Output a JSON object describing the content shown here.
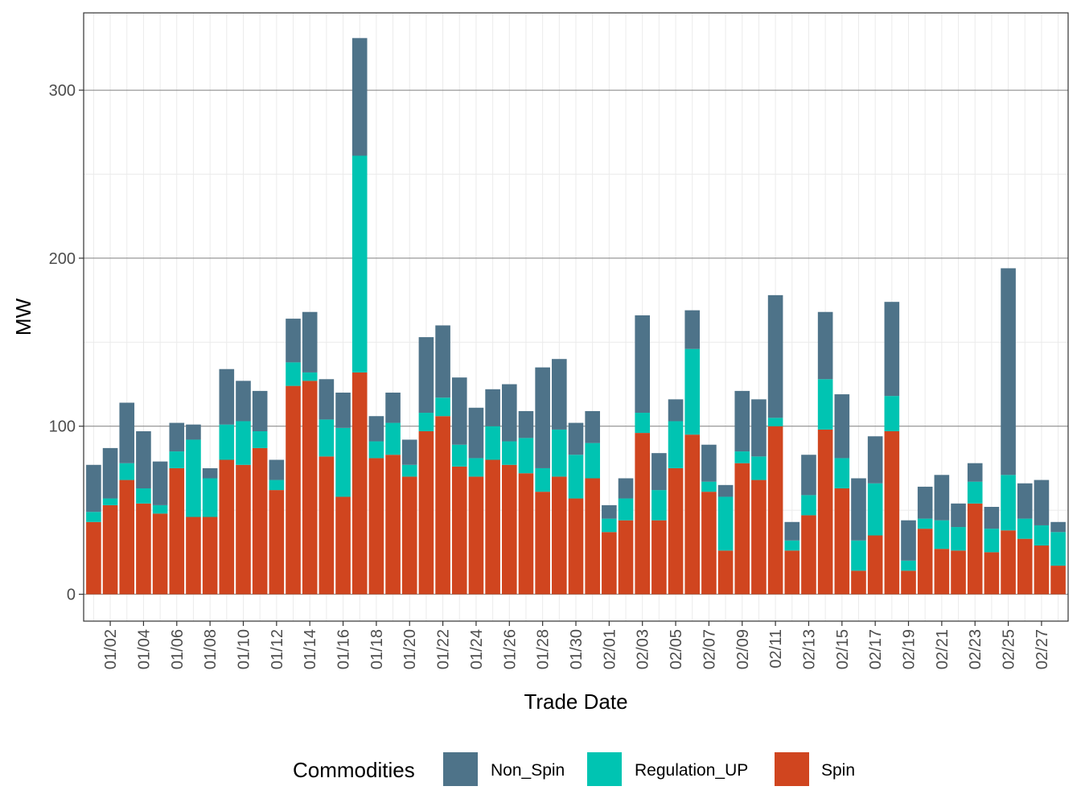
{
  "chart_data": {
    "type": "bar",
    "stacked": true,
    "xlabel": "Trade Date",
    "ylabel": "MW",
    "ylim": [
      -16,
      346
    ],
    "yticks": [
      0,
      100,
      200,
      300
    ],
    "grid": true,
    "legend_position": "bottom",
    "legend_title": "Commodities",
    "categories": [
      "01/01",
      "01/02",
      "01/03",
      "01/04",
      "01/05",
      "01/06",
      "01/07",
      "01/08",
      "01/09",
      "01/10",
      "01/11",
      "01/12",
      "01/13",
      "01/14",
      "01/15",
      "01/16",
      "01/17",
      "01/18",
      "01/19",
      "01/20",
      "01/21",
      "01/22",
      "01/23",
      "01/24",
      "01/25",
      "01/26",
      "01/27",
      "01/28",
      "01/29",
      "01/30",
      "01/31",
      "02/01",
      "02/02",
      "02/03",
      "02/04",
      "02/05",
      "02/06",
      "02/07",
      "02/08",
      "02/09",
      "02/10",
      "02/11",
      "02/12",
      "02/13",
      "02/14",
      "02/15",
      "02/16",
      "02/17",
      "02/18",
      "02/19",
      "02/20",
      "02/21",
      "02/22",
      "02/23",
      "02/24",
      "02/25",
      "02/26",
      "02/27",
      "02/28"
    ],
    "xtick_labels": [
      "01/02",
      "01/04",
      "01/06",
      "01/08",
      "01/10",
      "01/12",
      "01/14",
      "01/16",
      "01/18",
      "01/20",
      "01/22",
      "01/24",
      "01/26",
      "01/28",
      "01/30",
      "02/01",
      "02/03",
      "02/05",
      "02/07",
      "02/09",
      "02/11",
      "02/13",
      "02/15",
      "02/17",
      "02/19",
      "02/21",
      "02/23",
      "02/25",
      "02/27"
    ],
    "stack_order": [
      "Spin",
      "Regulation_UP",
      "Non_Spin"
    ],
    "series": [
      {
        "name": "Non_Spin",
        "color": "#4e7389",
        "values": [
          28,
          30,
          36,
          34,
          26,
          17,
          9,
          6,
          33,
          24,
          24,
          12,
          26,
          36,
          24,
          21,
          70,
          15,
          18,
          15,
          45,
          43,
          40,
          30,
          22,
          34,
          16,
          60,
          42,
          19,
          19,
          8,
          12,
          58,
          22,
          13,
          23,
          22,
          7,
          36,
          34,
          73,
          11,
          24,
          40,
          38,
          37,
          28,
          56,
          24,
          19,
          27,
          14,
          11,
          13,
          123,
          21,
          27,
          6
        ]
      },
      {
        "name": "Regulation_UP",
        "color": "#00c4b2",
        "values": [
          6,
          4,
          10,
          9,
          5,
          10,
          46,
          23,
          21,
          26,
          10,
          6,
          14,
          5,
          22,
          41,
          129,
          10,
          19,
          7,
          11,
          11,
          13,
          11,
          20,
          14,
          21,
          14,
          28,
          26,
          21,
          8,
          13,
          12,
          18,
          28,
          51,
          6,
          32,
          7,
          14,
          5,
          6,
          12,
          30,
          18,
          18,
          31,
          21,
          6,
          6,
          17,
          14,
          13,
          14,
          33,
          12,
          12,
          20
        ]
      },
      {
        "name": "Spin",
        "color": "#d0451f",
        "values": [
          43,
          53,
          68,
          54,
          48,
          75,
          46,
          46,
          80,
          77,
          87,
          62,
          124,
          127,
          82,
          58,
          132,
          81,
          83,
          70,
          97,
          106,
          76,
          70,
          80,
          77,
          72,
          61,
          70,
          57,
          69,
          37,
          44,
          96,
          44,
          75,
          95,
          61,
          26,
          78,
          68,
          100,
          26,
          47,
          98,
          63,
          14,
          35,
          97,
          14,
          39,
          27,
          26,
          54,
          25,
          38,
          33,
          29,
          17
        ]
      }
    ]
  }
}
